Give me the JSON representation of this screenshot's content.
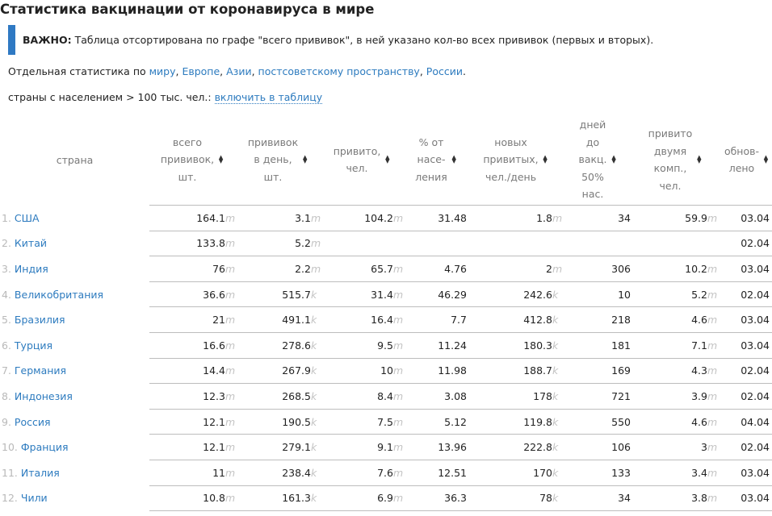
{
  "page": {
    "title": "Статистика вакцинации от коронавируса в мире",
    "notice": {
      "label": "ВАЖНО:",
      "text": " Таблица отсортирована по графе \"всего прививок\", в ней указано кол-во всех прививок (первых и вторых)."
    },
    "links": {
      "prefix": "Отдельная статистика по ",
      "items": [
        "миру",
        "Европе",
        "Азии",
        "постсоветскому пространству",
        "России"
      ],
      "sep": ", ",
      "end": "."
    },
    "filter": {
      "label": "страны с населением > 100 тыс. чел.: ",
      "action": "включить в таблицу"
    }
  },
  "table": {
    "headers": [
      {
        "line1": "страна",
        "line2": "",
        "line3": "",
        "line4": "",
        "line5": ""
      },
      {
        "line1": "всего",
        "line2": "прививок,",
        "line3": "шт.",
        "line4": "",
        "line5": ""
      },
      {
        "line1": "прививок",
        "line2": "в день,",
        "line3": "шт.",
        "line4": "",
        "line5": ""
      },
      {
        "line1": "привито,",
        "line2": "чел.",
        "line3": "",
        "line4": "",
        "line5": ""
      },
      {
        "line1": "% от",
        "line2": "насе-",
        "line3": "ления",
        "line4": "",
        "line5": ""
      },
      {
        "line1": "новых",
        "line2": "привитых,",
        "line3": "чел./день",
        "line4": "",
        "line5": ""
      },
      {
        "line1": "дней",
        "line2": "до",
        "line3": "вакц.",
        "line4": "50%",
        "line5": "нас."
      },
      {
        "line1": "привито",
        "line2": "двумя",
        "line3": "комп.,",
        "line4": "чел.",
        "line5": ""
      },
      {
        "line1": "обнов-",
        "line2": "лено",
        "line3": "",
        "line4": "",
        "line5": ""
      }
    ],
    "sort_icon": "sort-arrows-icon",
    "rows": [
      {
        "rank": "1.",
        "country": "США",
        "total": "164.1",
        "total_u": "m",
        "daily": "3.1",
        "daily_u": "m",
        "vaccinated": "104.2",
        "vaccinated_u": "m",
        "pct": "31.48",
        "new": "1.8",
        "new_u": "m",
        "days": "34",
        "two": "59.9",
        "two_u": "m",
        "updated": "03.04"
      },
      {
        "rank": "2.",
        "country": "Китай",
        "total": "133.8",
        "total_u": "m",
        "daily": "5.2",
        "daily_u": "m",
        "vaccinated": "",
        "vaccinated_u": "",
        "pct": "",
        "new": "",
        "new_u": "",
        "days": "",
        "two": "",
        "two_u": "",
        "updated": "02.04"
      },
      {
        "rank": "3.",
        "country": "Индия",
        "total": "76",
        "total_u": "m",
        "daily": "2.2",
        "daily_u": "m",
        "vaccinated": "65.7",
        "vaccinated_u": "m",
        "pct": "4.76",
        "new": "2",
        "new_u": "m",
        "days": "306",
        "two": "10.2",
        "two_u": "m",
        "updated": "03.04"
      },
      {
        "rank": "4.",
        "country": "Великобритания",
        "total": "36.6",
        "total_u": "m",
        "daily": "515.7",
        "daily_u": "k",
        "vaccinated": "31.4",
        "vaccinated_u": "m",
        "pct": "46.29",
        "new": "242.6",
        "new_u": "k",
        "days": "10",
        "two": "5.2",
        "two_u": "m",
        "updated": "02.04"
      },
      {
        "rank": "5.",
        "country": "Бразилия",
        "total": "21",
        "total_u": "m",
        "daily": "491.1",
        "daily_u": "k",
        "vaccinated": "16.4",
        "vaccinated_u": "m",
        "pct": "7.7",
        "new": "412.8",
        "new_u": "k",
        "days": "218",
        "two": "4.6",
        "two_u": "m",
        "updated": "03.04"
      },
      {
        "rank": "6.",
        "country": "Турция",
        "total": "16.6",
        "total_u": "m",
        "daily": "278.6",
        "daily_u": "k",
        "vaccinated": "9.5",
        "vaccinated_u": "m",
        "pct": "11.24",
        "new": "180.3",
        "new_u": "k",
        "days": "181",
        "two": "7.1",
        "two_u": "m",
        "updated": "03.04"
      },
      {
        "rank": "7.",
        "country": "Германия",
        "total": "14.4",
        "total_u": "m",
        "daily": "267.9",
        "daily_u": "k",
        "vaccinated": "10",
        "vaccinated_u": "m",
        "pct": "11.98",
        "new": "188.7",
        "new_u": "k",
        "days": "169",
        "two": "4.3",
        "two_u": "m",
        "updated": "02.04"
      },
      {
        "rank": "8.",
        "country": "Индонезия",
        "total": "12.3",
        "total_u": "m",
        "daily": "268.5",
        "daily_u": "k",
        "vaccinated": "8.4",
        "vaccinated_u": "m",
        "pct": "3.08",
        "new": "178",
        "new_u": "k",
        "days": "721",
        "two": "3.9",
        "two_u": "m",
        "updated": "02.04"
      },
      {
        "rank": "9.",
        "country": "Россия",
        "total": "12.1",
        "total_u": "m",
        "daily": "190.5",
        "daily_u": "k",
        "vaccinated": "7.5",
        "vaccinated_u": "m",
        "pct": "5.12",
        "new": "119.8",
        "new_u": "k",
        "days": "550",
        "two": "4.6",
        "two_u": "m",
        "updated": "04.04"
      },
      {
        "rank": "10.",
        "country": "Франция",
        "total": "12.1",
        "total_u": "m",
        "daily": "279.1",
        "daily_u": "k",
        "vaccinated": "9.1",
        "vaccinated_u": "m",
        "pct": "13.96",
        "new": "222.8",
        "new_u": "k",
        "days": "106",
        "two": "3",
        "two_u": "m",
        "updated": "02.04"
      },
      {
        "rank": "11.",
        "country": "Италия",
        "total": "11",
        "total_u": "m",
        "daily": "238.4",
        "daily_u": "k",
        "vaccinated": "7.6",
        "vaccinated_u": "m",
        "pct": "12.51",
        "new": "170",
        "new_u": "k",
        "days": "133",
        "two": "3.4",
        "two_u": "m",
        "updated": "03.04"
      },
      {
        "rank": "12.",
        "country": "Чили",
        "total": "10.8",
        "total_u": "m",
        "daily": "161.3",
        "daily_u": "k",
        "vaccinated": "6.9",
        "vaccinated_u": "m",
        "pct": "36.3",
        "new": "78",
        "new_u": "k",
        "days": "34",
        "two": "3.8",
        "two_u": "m",
        "updated": "03.04"
      }
    ]
  },
  "colors": {
    "accent": "#2f79c3",
    "link": "#2d7bbf",
    "muted": "#7a7a7a",
    "unit": "#c4c4c4",
    "rule": "#bdbdbd"
  }
}
